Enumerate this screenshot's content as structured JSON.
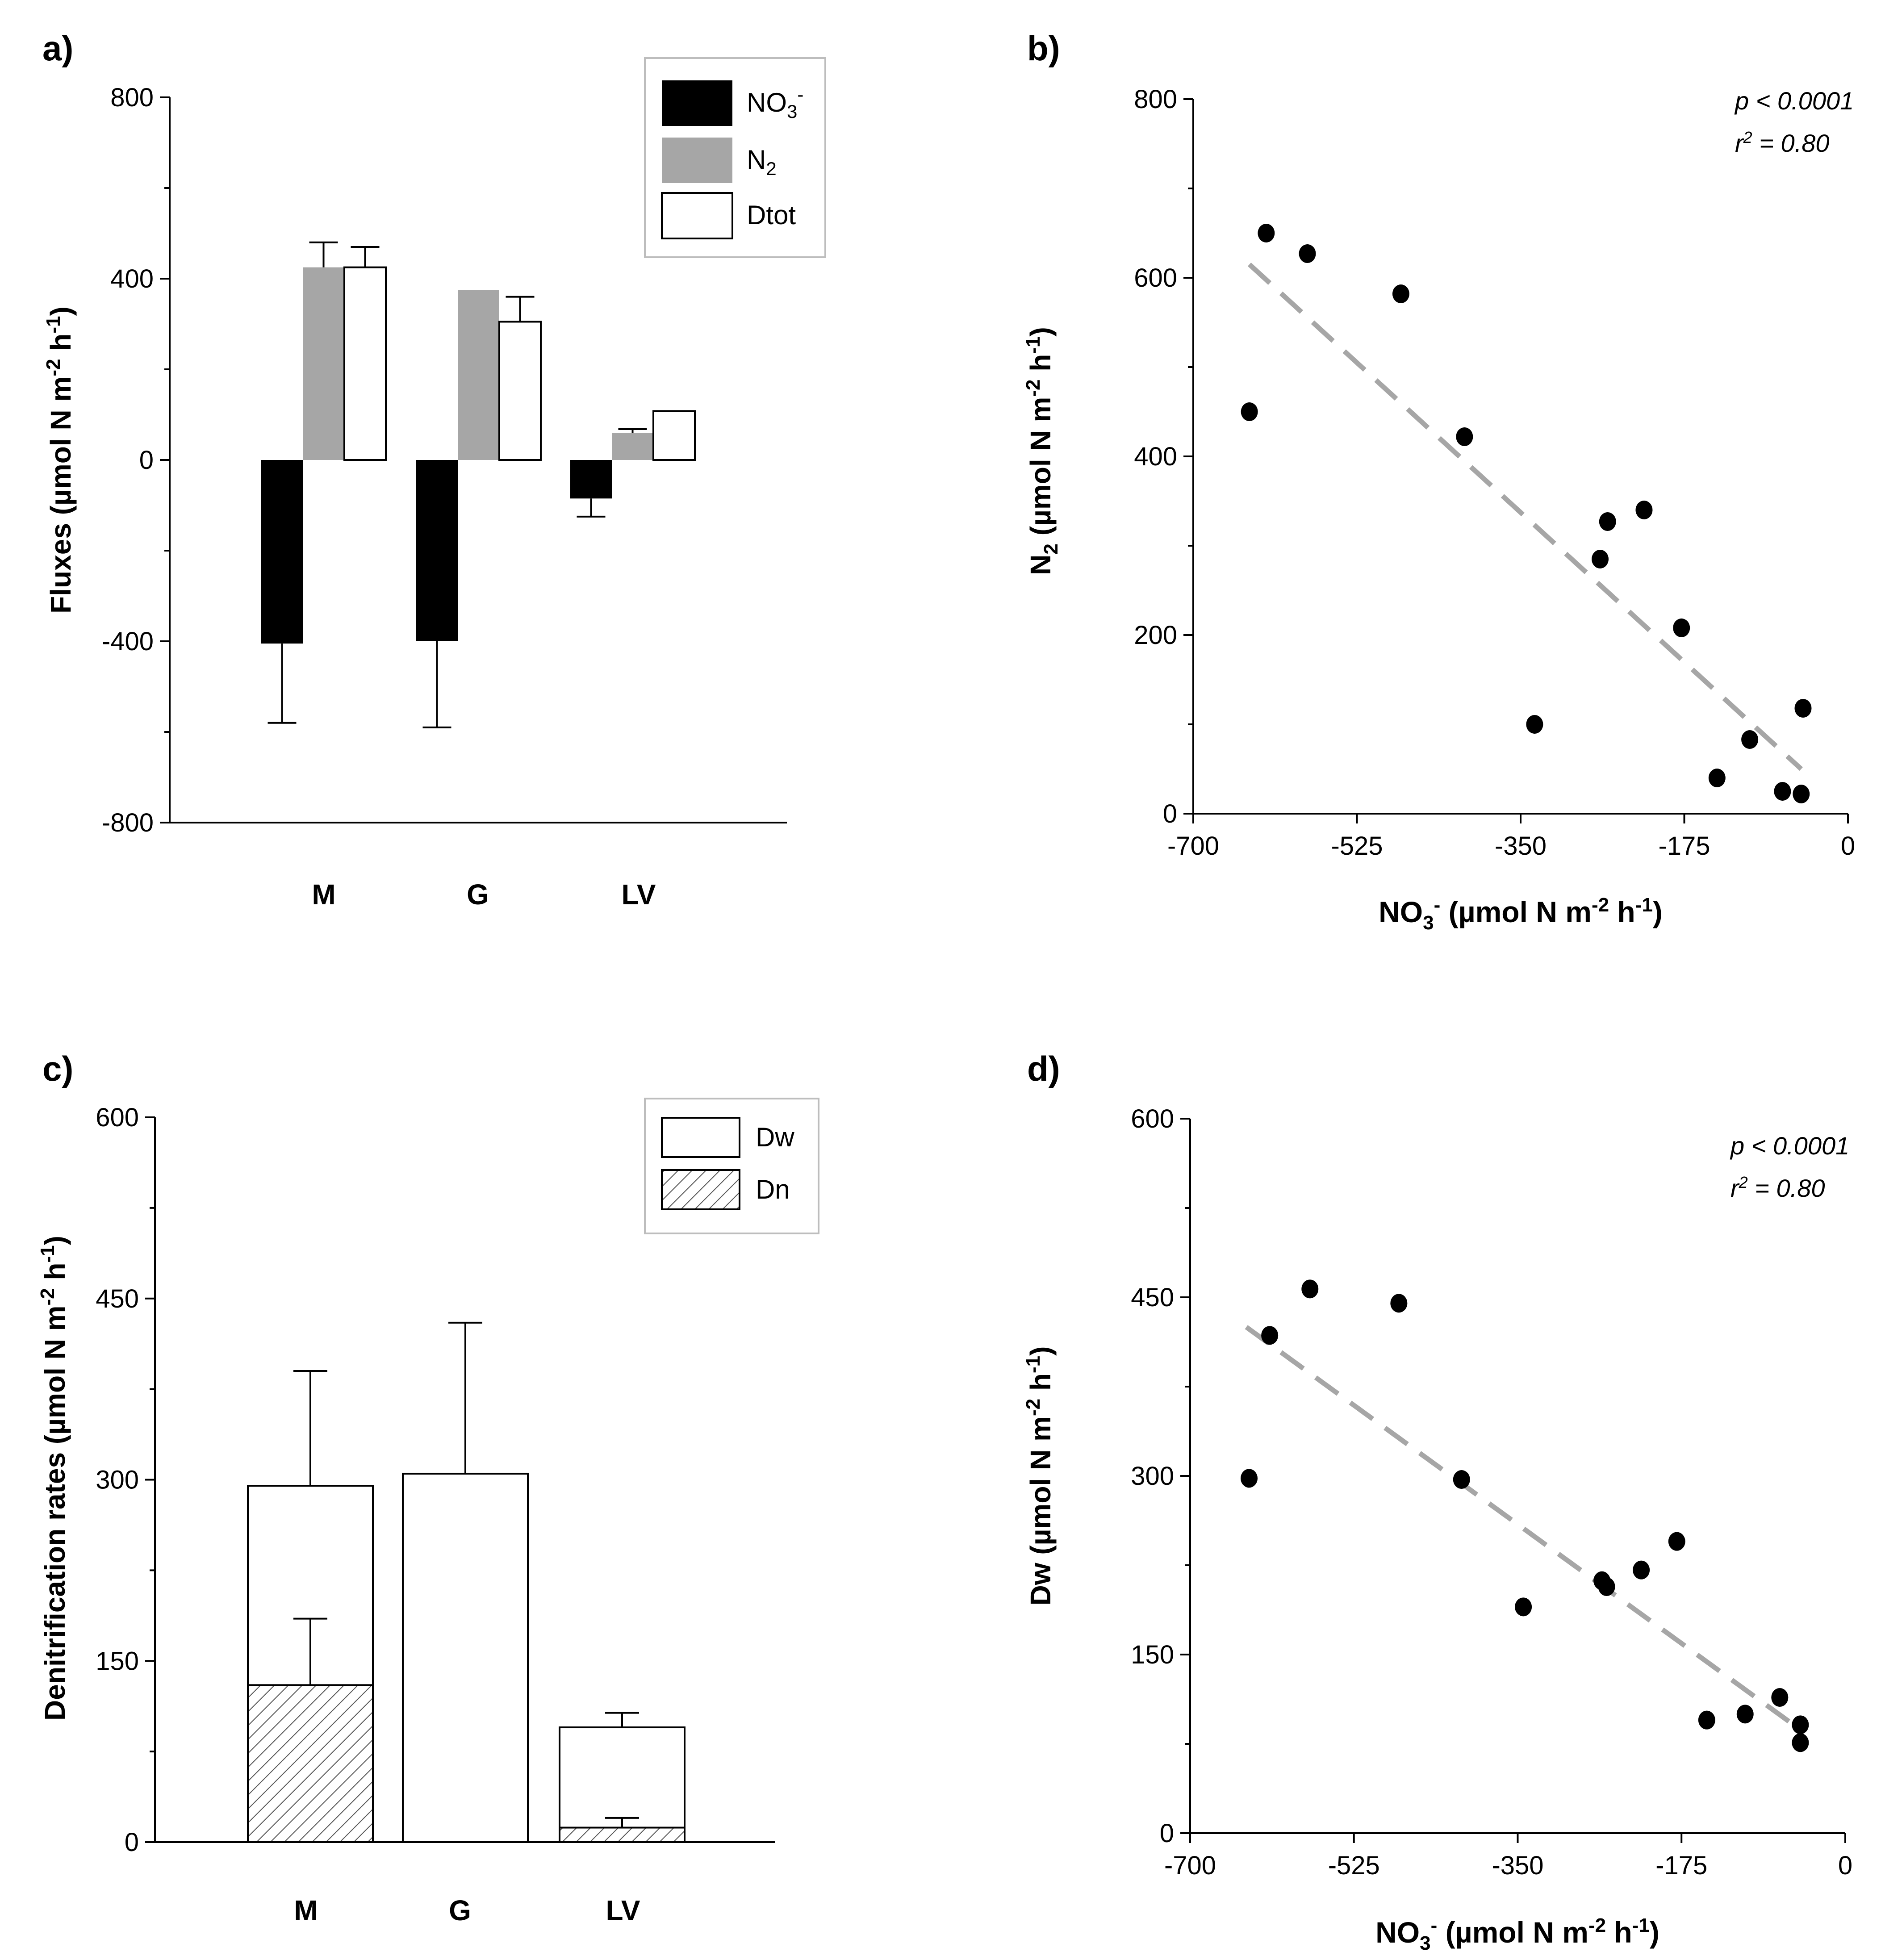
{
  "colors": {
    "no3": "#000000",
    "n2": "#a6a6a6",
    "dtot": "#ffffff",
    "dw": "#ffffff",
    "dn_hatch": "#555555",
    "trend": "#a6a6a6",
    "point": "#000000"
  },
  "panels": {
    "a": {
      "label": "a)",
      "chart_data": {
        "type": "bar",
        "categories": [
          "M",
          "G",
          "LV"
        ],
        "series": [
          {
            "name": "NO",
            "name_sub": "3",
            "name_sup": "-",
            "key": "no3",
            "values": [
              -405,
              -400,
              -85
            ],
            "errors": [
              175,
              190,
              40
            ]
          },
          {
            "name": "N",
            "name_sub": "2",
            "key": "n2",
            "values": [
              425,
              375,
              60
            ],
            "errors": [
              55,
              0,
              8
            ]
          },
          {
            "name": "Dtot",
            "key": "dtot",
            "values": [
              425,
              305,
              108
            ],
            "errors": [
              45,
              55,
              0
            ]
          }
        ],
        "ylabel": "Fluxes (µmol N m-2 h-1)",
        "ylabel_main": "Fluxes (µmol N m",
        "ylabel_sup1": "-2",
        "ylabel_mid": " h",
        "ylabel_sup2": "-1",
        "ylabel_end": ")",
        "ylim": [
          -800,
          800
        ],
        "yticks": [
          "800",
          "400",
          "0",
          "-400",
          "-800"
        ],
        "ytick_values": [
          800,
          400,
          0,
          -400,
          -800
        ],
        "legend": "top-right"
      }
    },
    "b": {
      "label": "b)",
      "stat_p": "p < 0.0001",
      "stat_r": "r",
      "stat_r_sup": "2",
      "stat_r_end": " = 0.80",
      "chart_data": {
        "type": "scatter",
        "x": [
          -640,
          -622,
          -578,
          -478,
          -410,
          -335,
          -265,
          -257,
          -218,
          -178,
          -140,
          -105,
          -70,
          -50,
          -48
        ],
        "y": [
          450,
          650,
          627,
          582,
          422,
          100,
          285,
          327,
          340,
          208,
          40,
          83,
          25,
          22,
          118
        ],
        "trendline": {
          "x": [
            -640,
            -50
          ],
          "y": [
            615,
            50
          ]
        },
        "xlim": [
          -700,
          0
        ],
        "ylim": [
          0,
          800
        ],
        "xticks": [
          "-700",
          "-525",
          "-350",
          "-175",
          "0"
        ],
        "xtick_values": [
          -700,
          -525,
          -350,
          -175,
          0
        ],
        "yticks": [
          "800",
          "600",
          "400",
          "200",
          "0"
        ],
        "ytick_values": [
          800,
          600,
          400,
          200,
          0
        ],
        "ylabel_a": "N",
        "ylabel_a_sub": "2",
        "ylabel_b": " (µmol N m",
        "ylabel_sup1": "-2",
        "ylabel_mid": " h",
        "ylabel_sup2": "-1",
        "ylabel_end": ")",
        "xlabel_a": "NO",
        "xlabel_a_sub": "3",
        "xlabel_a_sup": "-",
        "xlabel_b": " (µmol N m",
        "xlabel_sup1": "-2",
        "xlabel_mid": " h",
        "xlabel_sup2": "-1",
        "xlabel_end": ")"
      }
    },
    "c": {
      "label": "c)",
      "chart_data": {
        "type": "bar",
        "stacked": true,
        "categories": [
          "M",
          "G",
          "LV"
        ],
        "series": [
          {
            "name": "Dw",
            "key": "dw",
            "values": [
              295,
              305,
              95
            ],
            "errors": [
              95,
              125,
              12
            ]
          },
          {
            "name": "Dn",
            "key": "dn",
            "values": [
              130,
              0,
              12
            ],
            "errors": [
              55,
              0,
              8
            ]
          }
        ],
        "ylabel": "Denitrification rates (µmol N m-2 h-1)",
        "ylabel_main": "Denitrification rates (µmol N m",
        "ylabel_sup1": "-2",
        "ylabel_mid": " h",
        "ylabel_sup2": "-1",
        "ylabel_end": ")",
        "ylim": [
          0,
          600
        ],
        "yticks": [
          "600",
          "450",
          "300",
          "150",
          "0"
        ],
        "ytick_values": [
          600,
          450,
          300,
          150,
          0
        ],
        "legend": "top-right"
      }
    },
    "d": {
      "label": "d)",
      "stat_p": "p < 0.0001",
      "stat_r": "r",
      "stat_r_sup": "2",
      "stat_r_end": " = 0.80",
      "chart_data": {
        "type": "scatter",
        "x": [
          -637,
          -615,
          -572,
          -477,
          -410,
          -344,
          -260,
          -255,
          -218,
          -180,
          -148,
          -107,
          -70,
          -48,
          -48
        ],
        "y": [
          298,
          418,
          457,
          445,
          297,
          190,
          212,
          207,
          221,
          245,
          95,
          100,
          114,
          91,
          76
        ],
        "trendline": {
          "x": [
            -640,
            -50
          ],
          "y": [
            425,
            88
          ]
        },
        "xlim": [
          -700,
          0
        ],
        "ylim": [
          0,
          600
        ],
        "xticks": [
          "-700",
          "-525",
          "-350",
          "-175",
          "0"
        ],
        "xtick_values": [
          -700,
          -525,
          -350,
          -175,
          0
        ],
        "yticks": [
          "600",
          "450",
          "300",
          "150",
          "0"
        ],
        "ytick_values": [
          600,
          450,
          300,
          150,
          0
        ],
        "ylabel_a": "Dw",
        "ylabel_b": " (µmol N m",
        "ylabel_sup1": "-2",
        "ylabel_mid": " h",
        "ylabel_sup2": "-1",
        "ylabel_end": ")",
        "xlabel_a": "NO",
        "xlabel_a_sub": "3",
        "xlabel_a_sup": "-",
        "xlabel_b": " (µmol N m",
        "xlabel_sup1": "-2",
        "xlabel_mid": " h",
        "xlabel_sup2": "-1",
        "xlabel_end": ")"
      }
    }
  }
}
